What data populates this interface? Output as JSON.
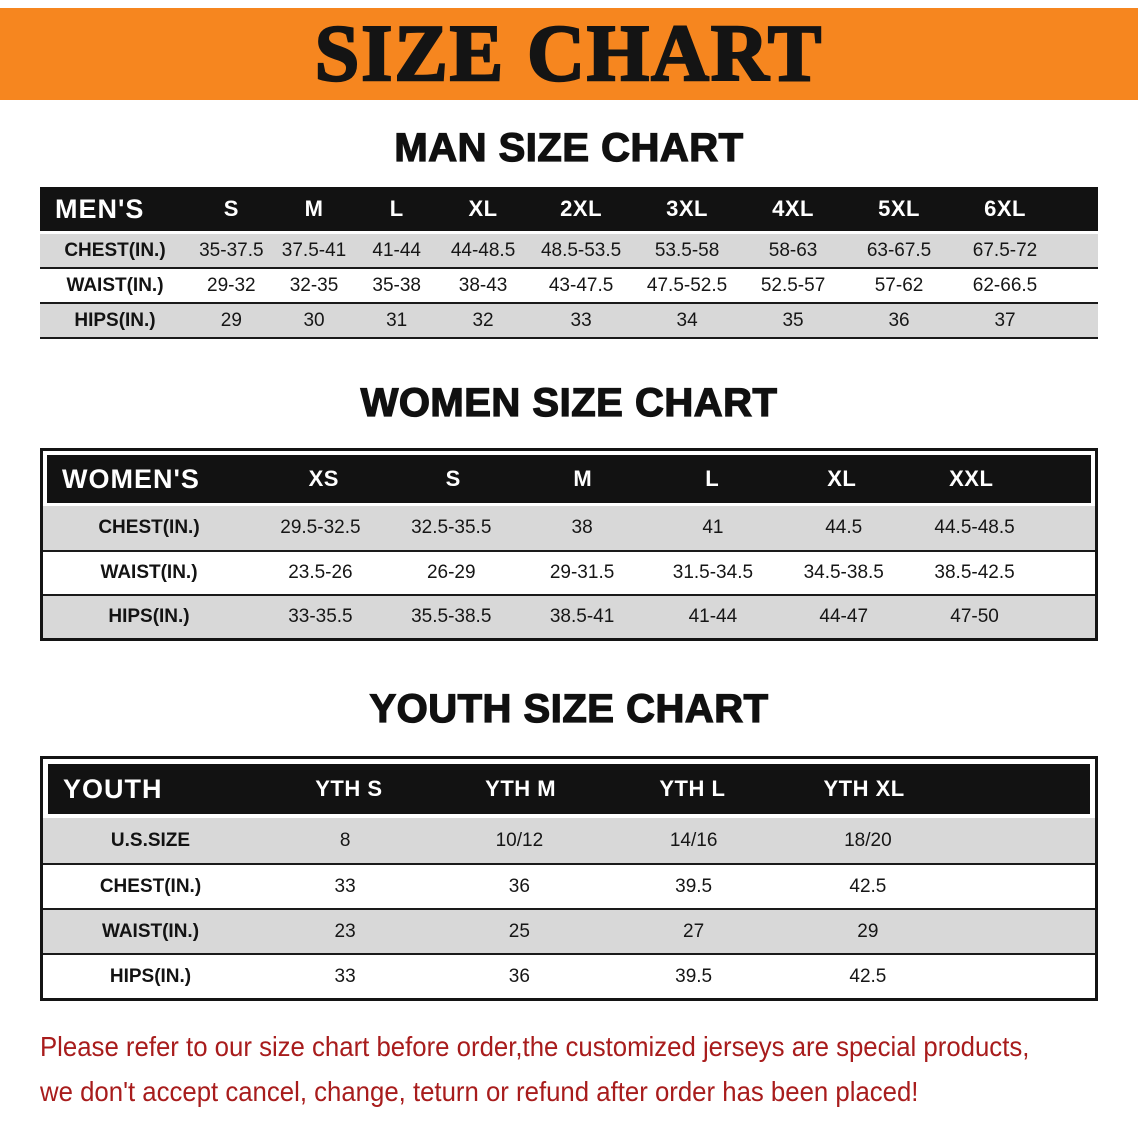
{
  "banner": {
    "title": "SIZE CHART"
  },
  "colors": {
    "banner_orange": "#F6861F",
    "header_black": "#121212",
    "row_gray": "#D8D8D8",
    "notice_red": "#A81C1C"
  },
  "men": {
    "heading": "MAN SIZE CHART",
    "table": {
      "header": [
        "MEN'S",
        "S",
        "M",
        "L",
        "XL",
        "2XL",
        "3XL",
        "4XL",
        "5XL",
        "6XL"
      ],
      "rows": [
        [
          "CHEST(IN.)",
          "35-37.5",
          "37.5-41",
          "41-44",
          "44-48.5",
          "48.5-53.5",
          "53.5-58",
          "58-63",
          "63-67.5",
          "67.5-72"
        ],
        [
          "WAIST(IN.)",
          "29-32",
          "32-35",
          "35-38",
          "38-43",
          "43-47.5",
          "47.5-52.5",
          "52.5-57",
          "57-62",
          "62-66.5"
        ],
        [
          "HIPS(IN.)",
          "29",
          "30",
          "31",
          "32",
          "33",
          "34",
          "35",
          "36",
          "37"
        ]
      ]
    }
  },
  "women": {
    "heading": "WOMEN SIZE CHART",
    "table": {
      "header": [
        "WOMEN'S",
        "XS",
        "S",
        "M",
        "L",
        "XL",
        "XXL"
      ],
      "rows": [
        [
          "CHEST(IN.)",
          "29.5-32.5",
          "32.5-35.5",
          "38",
          "41",
          "44.5",
          "44.5-48.5"
        ],
        [
          "WAIST(IN.)",
          "23.5-26",
          "26-29",
          "29-31.5",
          "31.5-34.5",
          "34.5-38.5",
          "38.5-42.5"
        ],
        [
          "HIPS(IN.)",
          "33-35.5",
          "35.5-38.5",
          "38.5-41",
          "41-44",
          "44-47",
          "47-50"
        ]
      ]
    }
  },
  "youth": {
    "heading": "YOUTH SIZE CHART",
    "table": {
      "header": [
        "YOUTH",
        "YTH S",
        "YTH M",
        "YTH L",
        "YTH XL"
      ],
      "rows": [
        [
          "U.S.SIZE",
          "8",
          "10/12",
          "14/16",
          "18/20"
        ],
        [
          "CHEST(IN.)",
          "33",
          "36",
          "39.5",
          "42.5"
        ],
        [
          "WAIST(IN.)",
          "23",
          "25",
          "27",
          "29"
        ],
        [
          "HIPS(IN.)",
          "33",
          "36",
          "39.5",
          "42.5"
        ]
      ]
    }
  },
  "notice": {
    "line1": "Please refer to our size chart before order,the customized jerseys are special products,",
    "line2": "we don't accept cancel, change, teturn or refund after order has been placed!"
  }
}
